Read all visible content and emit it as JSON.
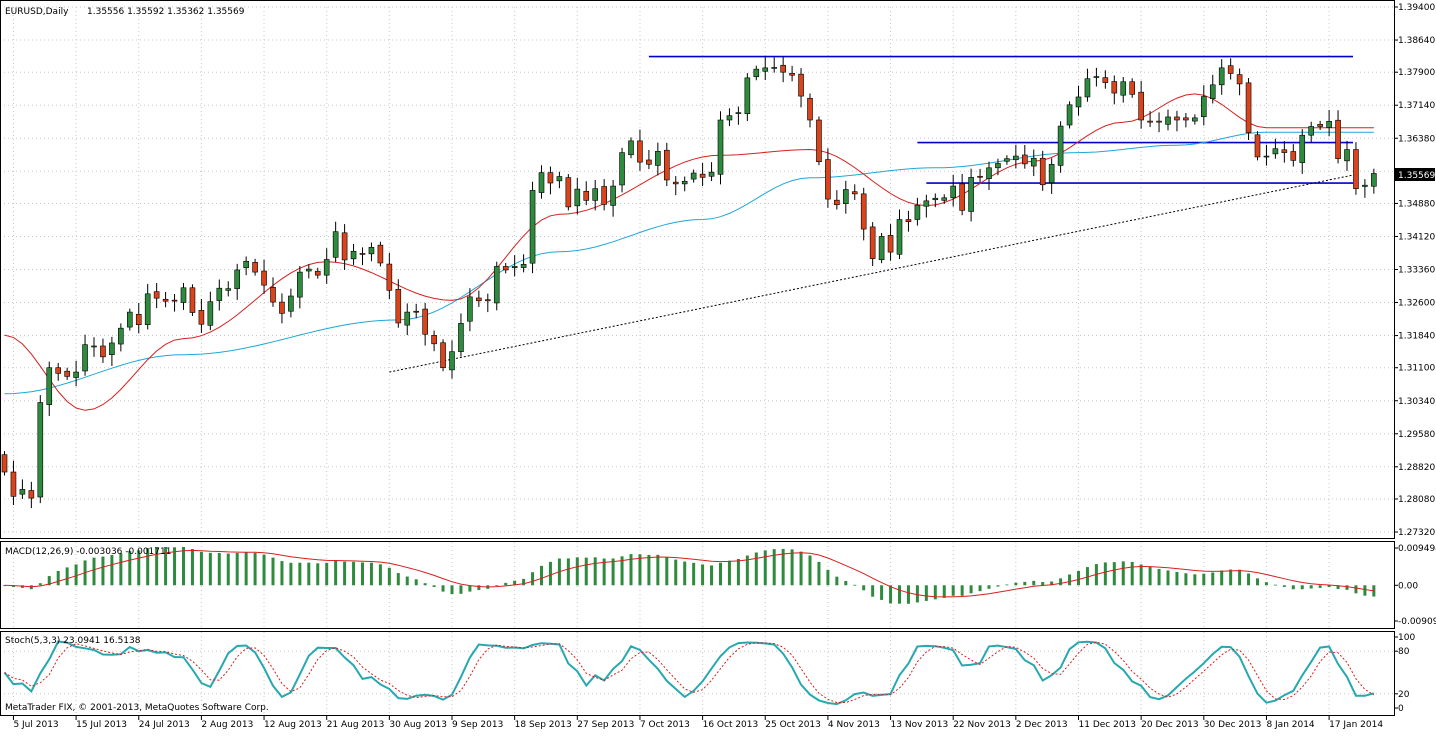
{
  "header": {
    "symbol_label": "EURUSD,Daily",
    "ohlc_label": "1.35556 1.35592 1.35362 1.35569",
    "current_price_label": "1.35569"
  },
  "macd": {
    "label": "MACD(12,26,9) -0.003036 -0.001711",
    "ticks": [
      {
        "v": 0.009494,
        "label": "0.009494"
      },
      {
        "v": 0.0,
        "label": "0.00"
      },
      {
        "v": -0.009095,
        "label": "-0.009095"
      }
    ]
  },
  "stoch": {
    "label": "Stoch(5,3,3) 23.0941 16.5138",
    "ticks": [
      {
        "v": 100,
        "label": "100"
      },
      {
        "v": 80,
        "label": "80"
      },
      {
        "v": 20,
        "label": "20"
      },
      {
        "v": 0,
        "label": "0"
      }
    ]
  },
  "copyright": "MetaTrader FIX, © 2001-2013, MetaQuotes Software Corp.",
  "colors": {
    "bull": "#2e8b3e",
    "bear": "#d9441c",
    "wick": "#000000",
    "ma_fast": "#d81f1f",
    "ma_slow": "#1ea8d8",
    "hlines": "#0000cc",
    "histogram": "#2e8b3e",
    "signal": "#d81f1f",
    "stoch_main": "#26a8b0",
    "stoch_signal": "#d81f1f"
  },
  "chart_data": {
    "type": "candlestick",
    "y_ticks": [
      "1.39400",
      "1.38640",
      "1.37900",
      "1.37140",
      "1.36380",
      "1.35620",
      "1.34880",
      "1.34120",
      "1.33360",
      "1.32600",
      "1.31840",
      "1.31100",
      "1.30340",
      "1.29580",
      "1.28820",
      "1.28080",
      "1.27320"
    ],
    "ylim": [
      1.2732,
      1.394
    ],
    "x_labels": [
      {
        "i": 1,
        "label": "5 Jul 2013"
      },
      {
        "i": 8,
        "label": "15 Jul 2013"
      },
      {
        "i": 15,
        "label": "24 Jul 2013"
      },
      {
        "i": 22,
        "label": "2 Aug 2013"
      },
      {
        "i": 29,
        "label": "12 Aug 2013"
      },
      {
        "i": 36,
        "label": "21 Aug 2013"
      },
      {
        "i": 43,
        "label": "30 Aug 2013"
      },
      {
        "i": 50,
        "label": "9 Sep 2013"
      },
      {
        "i": 57,
        "label": "18 Sep 2013"
      },
      {
        "i": 64,
        "label": "27 Sep 2013"
      },
      {
        "i": 71,
        "label": "7 Oct 2013"
      },
      {
        "i": 78,
        "label": "16 Oct 2013"
      },
      {
        "i": 85,
        "label": "25 Oct 2013"
      },
      {
        "i": 92,
        "label": "4 Nov 2013"
      },
      {
        "i": 99,
        "label": "13 Nov 2013"
      },
      {
        "i": 106,
        "label": "22 Nov 2013"
      },
      {
        "i": 113,
        "label": "2 Dec 2013"
      },
      {
        "i": 120,
        "label": "11 Dec 2013"
      },
      {
        "i": 127,
        "label": "20 Dec 2013"
      },
      {
        "i": 134,
        "label": "30 Dec 2013"
      },
      {
        "i": 141,
        "label": "8 Jan 2014"
      },
      {
        "i": 148,
        "label": "17 Jan 2014"
      }
    ],
    "closes": [
      1.287,
      1.2814,
      1.283,
      1.281,
      1.303,
      1.311,
      1.3097,
      1.309,
      1.31,
      1.3163,
      1.316,
      1.3135,
      1.3167,
      1.3201,
      1.3238,
      1.3209,
      1.328,
      1.327,
      1.3263,
      1.3265,
      1.3294,
      1.3237,
      1.321,
      1.3262,
      1.3293,
      1.3292,
      1.3335,
      1.3355,
      1.333,
      1.33,
      1.3261,
      1.3235,
      1.3275,
      1.333,
      1.3337,
      1.3323,
      1.3359,
      1.3423,
      1.3358,
      1.3378,
      1.3372,
      1.3387,
      1.3351,
      1.3288,
      1.3213,
      1.3238,
      1.324,
      1.3187,
      1.3165,
      1.311,
      1.3147,
      1.3212,
      1.3273,
      1.3264,
      1.3264,
      1.3343,
      1.3335,
      1.3343,
      1.3348,
      1.3518,
      1.3559,
      1.3535,
      1.355,
      1.348,
      1.3521,
      1.3495,
      1.3522,
      1.3486,
      1.3528,
      1.3605,
      1.3632,
      1.3583,
      1.3578,
      1.3608,
      1.3542,
      1.3533,
      1.3539,
      1.3558,
      1.3548,
      1.356,
      1.368,
      1.369,
      1.3697,
      1.3777,
      1.3797,
      1.38,
      1.3801,
      1.379,
      1.3783,
      1.3735,
      1.368,
      1.3584,
      1.3498,
      1.3485,
      1.352,
      1.351,
      1.3429,
      1.3361,
      1.3412,
      1.3376,
      1.3451,
      1.3446,
      1.3484,
      1.3494,
      1.35,
      1.3501,
      1.3528,
      1.3472,
      1.3548,
      1.355,
      1.357,
      1.358,
      1.3591,
      1.3597,
      1.3579,
      1.3592,
      1.3531,
      1.3578,
      1.3666,
      1.3715,
      1.3733,
      1.3775,
      1.378,
      1.3766,
      1.3742,
      1.3768,
      1.3739,
      1.368,
      1.3675,
      1.3675,
      1.3687,
      1.368,
      1.368,
      1.3685,
      1.3734,
      1.3761,
      1.38,
      1.3787,
      1.3763,
      1.3651,
      1.3595,
      1.3597,
      1.3614,
      1.3605,
      1.3587,
      1.3645,
      1.3665,
      1.3665,
      1.3677,
      1.3591,
      1.3612,
      1.3522,
      1.353,
      1.3557
    ],
    "ma_fast_sample": [
      {
        "i": 0,
        "v": 1.3185
      },
      {
        "i": 9,
        "v": 1.3012
      },
      {
        "i": 20,
        "v": 1.3177
      },
      {
        "i": 36,
        "v": 1.3354
      },
      {
        "i": 50,
        "v": 1.3265
      },
      {
        "i": 62,
        "v": 1.3463
      },
      {
        "i": 80,
        "v": 1.3599
      },
      {
        "i": 90,
        "v": 1.3612
      },
      {
        "i": 103,
        "v": 1.3483
      },
      {
        "i": 115,
        "v": 1.3585
      },
      {
        "i": 125,
        "v": 1.3675
      },
      {
        "i": 133,
        "v": 1.374
      },
      {
        "i": 141,
        "v": 1.3662
      }
    ],
    "ma_slow_sample": [
      {
        "i": 0,
        "v": 1.305
      },
      {
        "i": 20,
        "v": 1.314
      },
      {
        "i": 44,
        "v": 1.322
      },
      {
        "i": 62,
        "v": 1.3377
      },
      {
        "i": 78,
        "v": 1.3451
      },
      {
        "i": 90,
        "v": 1.3547
      },
      {
        "i": 104,
        "v": 1.357
      },
      {
        "i": 120,
        "v": 1.3605
      },
      {
        "i": 131,
        "v": 1.3622
      },
      {
        "i": 141,
        "v": 1.3652
      }
    ],
    "horizontal_levels": [
      {
        "from": 72,
        "to": 150,
        "v": 1.3826
      },
      {
        "from": 102,
        "to": 150,
        "v": 1.3628
      },
      {
        "from": 103,
        "to": 150,
        "v": 1.3535
      }
    ],
    "trendline": {
      "from": {
        "i": 43,
        "v": 1.31
      },
      "to": {
        "i": 150,
        "v": 1.3545
      }
    }
  }
}
